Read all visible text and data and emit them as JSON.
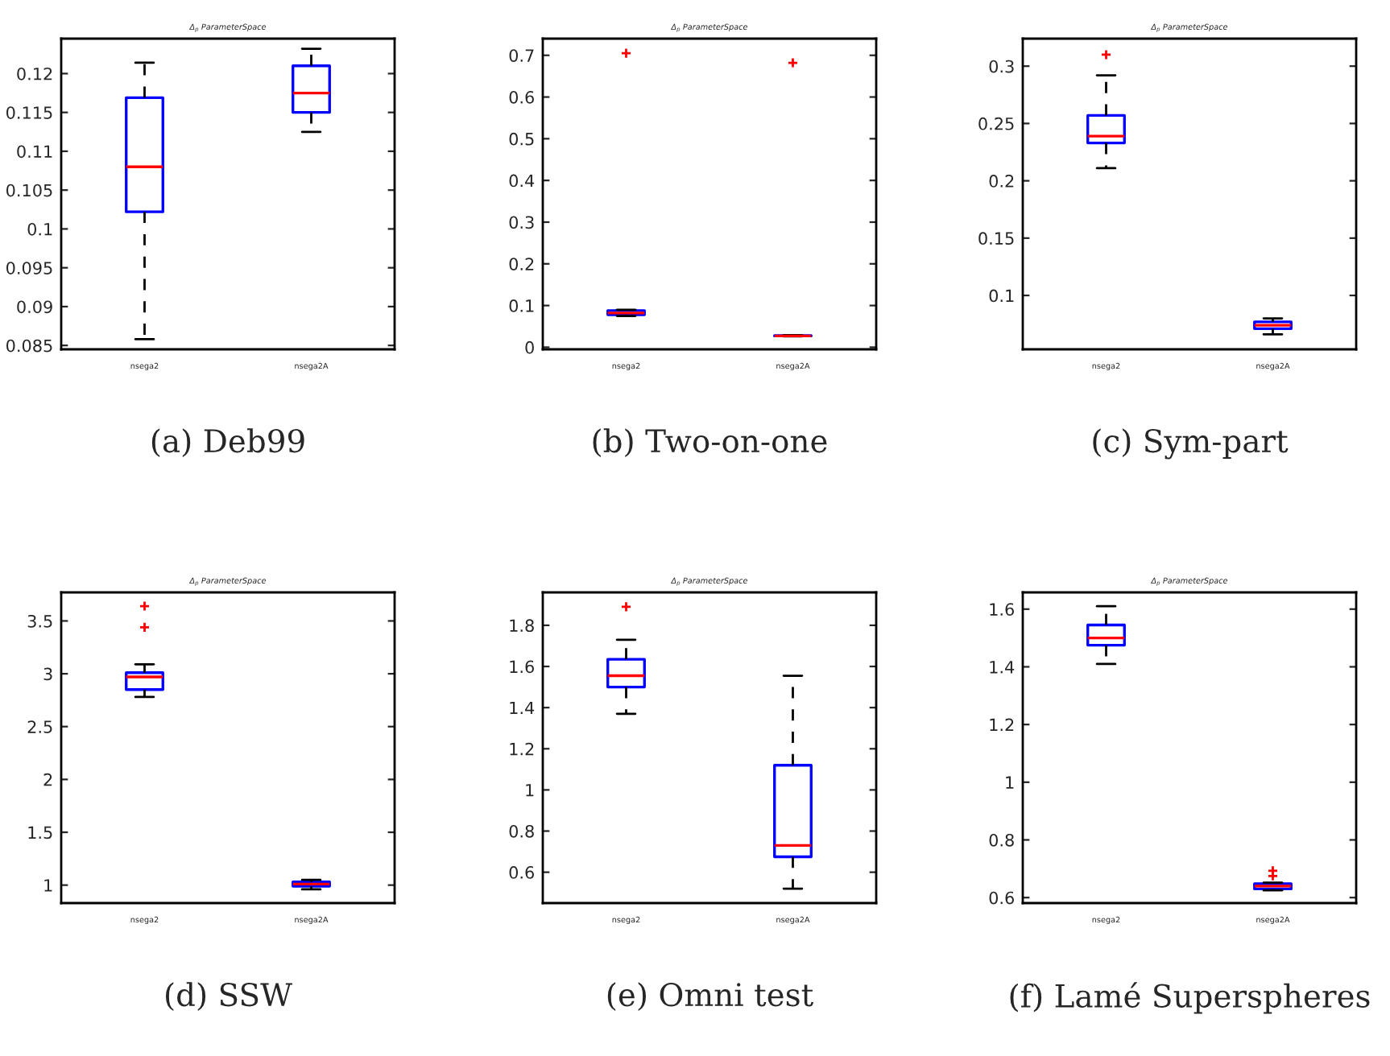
{
  "chart_data": [
    {
      "type": "box",
      "title": "Δ$_{p}$ ParameterSpace",
      "xlabel": "(a) Deb99",
      "categories": [
        "nsega2",
        "nsega2A"
      ],
      "ylim": [
        0.0845,
        0.1245
      ],
      "yticks": [
        0.085,
        0.09,
        0.095,
        0.1,
        0.105,
        0.11,
        0.115,
        0.12
      ],
      "boxes": [
        {
          "low": 0.0858,
          "q1": 0.1022,
          "median": 0.108,
          "q3": 0.1169,
          "high": 0.1214
        },
        {
          "low": 0.1125,
          "q1": 0.115,
          "median": 0.1175,
          "q3": 0.121,
          "high": 0.1232
        }
      ]
    },
    {
      "type": "box",
      "title": "Δ$_{p}$ ParameterSpace",
      "xlabel": "(b) Two-on-one",
      "categories": [
        "nsega2",
        "nsega2A"
      ],
      "ylim": [
        -0.005,
        0.74
      ],
      "yticks": [
        0,
        0.1,
        0.2,
        0.3,
        0.4,
        0.5,
        0.6,
        0.7
      ],
      "boxes": [
        {
          "low": 0.075,
          "q1": 0.078,
          "median": 0.082,
          "q3": 0.088,
          "high": 0.09,
          "outliers": [
            0.705
          ]
        },
        {
          "low": 0.026,
          "q1": 0.027,
          "median": 0.027,
          "q3": 0.028,
          "high": 0.029,
          "outliers": [
            0.682
          ]
        }
      ]
    },
    {
      "type": "box",
      "title": "Δ$_{p}$ ParameterSpace",
      "xlabel": "(c) Sym-part",
      "categories": [
        "nsega2",
        "nsega2A"
      ],
      "ylim": [
        0.053,
        0.324
      ],
      "yticks": [
        0.1,
        0.15,
        0.2,
        0.25,
        0.3
      ],
      "boxes": [
        {
          "low": 0.211,
          "q1": 0.233,
          "median": 0.239,
          "q3": 0.257,
          "high": 0.292,
          "outliers": [
            0.31
          ]
        },
        {
          "low": 0.066,
          "q1": 0.071,
          "median": 0.074,
          "q3": 0.077,
          "high": 0.08
        }
      ]
    },
    {
      "type": "box",
      "title": "Δ$_{p}$ ParameterSpace",
      "xlabel": "(d) SSW",
      "categories": [
        "nsega2",
        "nsega2A"
      ],
      "ylim": [
        0.83,
        3.77
      ],
      "yticks": [
        1,
        1.5,
        2,
        2.5,
        3,
        3.5
      ],
      "boxes": [
        {
          "low": 2.78,
          "q1": 2.85,
          "median": 2.97,
          "q3": 3.01,
          "high": 3.09,
          "outliers": [
            3.44,
            3.64
          ]
        },
        {
          "low": 0.96,
          "q1": 0.99,
          "median": 1.01,
          "q3": 1.03,
          "high": 1.05
        }
      ]
    },
    {
      "type": "box",
      "title": "Δ$_{p}$ ParameterSpace",
      "xlabel": "(e) Omni test",
      "categories": [
        "nsega2",
        "nsega2A"
      ],
      "ylim": [
        0.45,
        1.96
      ],
      "yticks": [
        0.6,
        0.8,
        1,
        1.2,
        1.4,
        1.6,
        1.8
      ],
      "boxes": [
        {
          "low": 1.37,
          "q1": 1.5,
          "median": 1.555,
          "q3": 1.635,
          "high": 1.73,
          "outliers": [
            1.89
          ]
        },
        {
          "low": 0.52,
          "q1": 0.675,
          "median": 0.73,
          "q3": 1.12,
          "high": 1.555
        }
      ]
    },
    {
      "type": "box",
      "title": "Δ$_{p}$ ParameterSpace",
      "xlabel": "(f) Lamé Superspheres",
      "categories": [
        "nsega2",
        "nsega2A"
      ],
      "ylim": [
        0.581,
        1.658
      ],
      "yticks": [
        0.6,
        0.8,
        1,
        1.2,
        1.4,
        1.6
      ],
      "boxes": [
        {
          "low": 1.41,
          "q1": 1.475,
          "median": 1.5,
          "q3": 1.545,
          "high": 1.61
        },
        {
          "low": 0.625,
          "q1": 0.63,
          "median": 0.64,
          "q3": 0.648,
          "high": 0.652,
          "outliers": [
            0.675,
            0.693
          ]
        }
      ]
    }
  ]
}
